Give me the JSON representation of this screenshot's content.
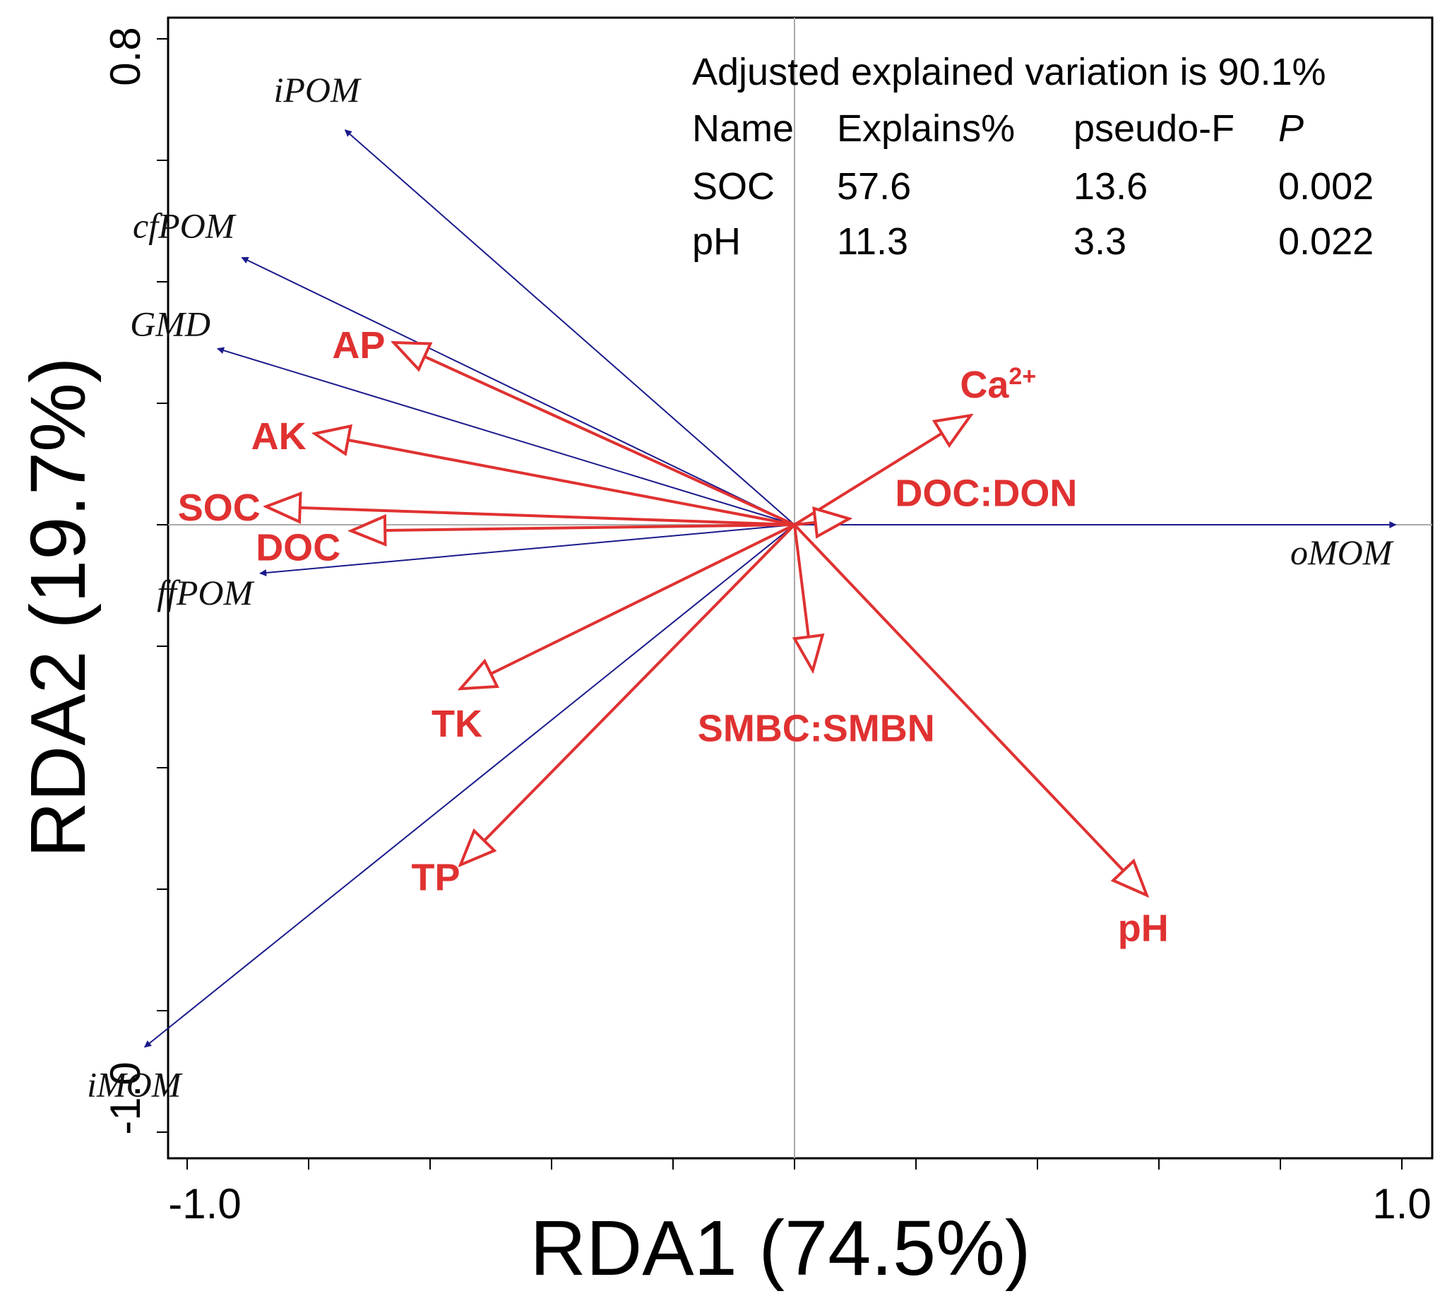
{
  "chart_data": {
    "type": "scatter",
    "subtype": "rda_biplot",
    "title": "",
    "xlabel": "RDA1 (74.5%)",
    "ylabel": "RDA2 (19.7%)",
    "xlim": [
      -1.0,
      1.0
    ],
    "ylim": [
      -1.0,
      0.8
    ],
    "x_tick_labels": [
      "-1.0",
      "1.0"
    ],
    "y_tick_labels": [
      "0.8",
      "-1.0"
    ],
    "grid": false,
    "reference_lines": "x=0, y=0",
    "series": [
      {
        "name": "",
        "color": "#1a1a8c",
        "arrow_style": "solid-head",
        "points": [
          {
            "label": "iPOM",
            "x": -0.74,
            "y": 0.65
          },
          {
            "label": "cfPOM",
            "x": -0.91,
            "y": 0.44
          },
          {
            "label": "GMD",
            "x": -0.95,
            "y": 0.29
          },
          {
            "label": "oMOM",
            "x": 0.99,
            "y": 0.0
          },
          {
            "label": "ffPOM",
            "x": -0.88,
            "y": -0.08
          },
          {
            "label": "iMOM",
            "x": -1.07,
            "y": -0.86
          }
        ]
      },
      {
        "name": "",
        "color": "#e03131",
        "arrow_style": "open-head",
        "points": [
          {
            "label": "AP",
            "x": -0.66,
            "y": 0.3
          },
          {
            "label": "AK",
            "x": -0.79,
            "y": 0.15
          },
          {
            "label": "SOC",
            "x": -0.87,
            "y": 0.03
          },
          {
            "label": "DOC",
            "x": -0.73,
            "y": -0.01
          },
          {
            "label": "Ca",
            "label_sup": "2+",
            "x": 0.29,
            "y": 0.18
          },
          {
            "label": "DOC:DON",
            "x": 0.09,
            "y": 0.01
          },
          {
            "label": "TK",
            "x": -0.55,
            "y": -0.27
          },
          {
            "label": "SMBC:SMBN",
            "x": 0.03,
            "y": -0.24
          },
          {
            "label": "TP",
            "x": -0.55,
            "y": -0.56
          },
          {
            "label": "pH",
            "x": 0.58,
            "y": -0.61
          }
        ]
      }
    ],
    "annotation_table": {
      "heading": "Adjusted explained variation is  90.1%",
      "columns": [
        "Name",
        "Explains%",
        "pseudo-F",
        "P"
      ],
      "rows": [
        [
          "SOC",
          "57.6",
          "13.6",
          "0.002"
        ],
        [
          "pH",
          "11.3",
          "3.3",
          "0.022"
        ]
      ]
    }
  }
}
